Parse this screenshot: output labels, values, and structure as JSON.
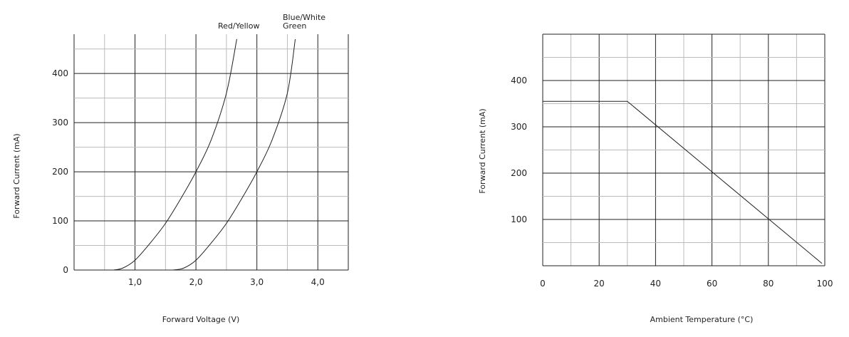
{
  "chart_data": [
    {
      "type": "line",
      "xlabel": "Forward Voltage (V)",
      "ylabel": "Forward Current (mA)",
      "xlim": [
        0,
        4.5
      ],
      "ylim": [
        0,
        480
      ],
      "xticks": [
        1.0,
        2.0,
        3.0,
        4.0
      ],
      "xtick_labels": [
        "1,0",
        "2,0",
        "3,0",
        "4,0"
      ],
      "yticks": [
        0,
        100,
        200,
        300,
        400
      ],
      "ytick_labels": [
        "0",
        "100",
        "200",
        "300",
        "400"
      ],
      "grid": true,
      "series": [
        {
          "name": "Red/Yellow",
          "points": [
            [
              0.65,
              0
            ],
            [
              0.8,
              4
            ],
            [
              1.0,
              20
            ],
            [
              1.25,
              55
            ],
            [
              1.5,
              95
            ],
            [
              1.75,
              145
            ],
            [
              2.0,
              200
            ],
            [
              2.25,
              265
            ],
            [
              2.5,
              360
            ],
            [
              2.67,
              470
            ]
          ]
        },
        {
          "name": "Blue/White\nGreen",
          "points": [
            [
              1.63,
              0
            ],
            [
              1.8,
              4
            ],
            [
              2.0,
              20
            ],
            [
              2.25,
              55
            ],
            [
              2.5,
              95
            ],
            [
              2.75,
              145
            ],
            [
              3.0,
              200
            ],
            [
              3.25,
              265
            ],
            [
              3.5,
              360
            ],
            [
              3.63,
              470
            ]
          ]
        }
      ]
    },
    {
      "type": "line",
      "xlabel": "Ambient Temperature (°C)",
      "ylabel": "Forward Current (mA)",
      "xlim": [
        0,
        100
      ],
      "ylim": [
        0,
        500
      ],
      "xticks": [
        0,
        20,
        40,
        60,
        80,
        100
      ],
      "xtick_labels": [
        "0",
        "20",
        "40",
        "60",
        "80",
        "100"
      ],
      "yticks": [
        100,
        200,
        300,
        400
      ],
      "ytick_labels": [
        "100",
        "200",
        "300",
        "400"
      ],
      "grid": true,
      "series": [
        {
          "points": [
            [
              0,
              355
            ],
            [
              30,
              355
            ],
            [
              99,
              5
            ]
          ]
        }
      ]
    }
  ]
}
